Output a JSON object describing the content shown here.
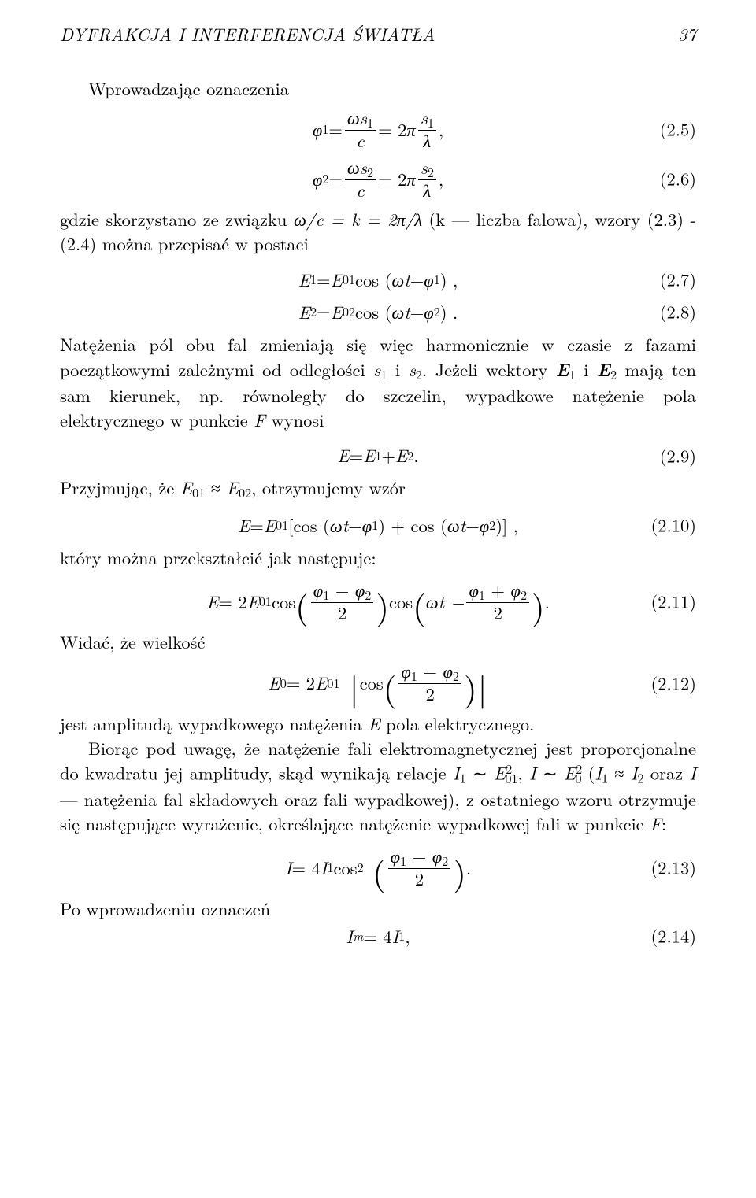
{
  "header": {
    "title": "DYFRAKCJA I INTERFERENCJA ŚWIATŁA",
    "page_number": "37"
  },
  "p_intro": "Wprowadzając oznaczenia",
  "eq25": {
    "lhs": "φ",
    "lhs_sub": "1",
    "eq": " = ",
    "frac1_num_a": "ωs",
    "frac1_num_sub": "1",
    "frac1_den": "c",
    "mid": " = 2",
    "pi": "π",
    "frac2_num_a": "s",
    "frac2_num_sub": "1",
    "frac2_den": "λ",
    "tail": ",",
    "num": "(2.5)"
  },
  "eq26": {
    "lhs": "φ",
    "lhs_sub": "2",
    "eq": " = ",
    "frac1_num_a": "ωs",
    "frac1_num_sub": "2",
    "frac1_den": "c",
    "mid": " = 2",
    "pi": "π",
    "frac2_num_a": "s",
    "frac2_num_sub": "2",
    "frac2_den": "λ",
    "tail": ",",
    "num": "(2.6)"
  },
  "p_after26_a": "gdzie skorzystano ze związku ",
  "p_after26_rel": "ω/c = k = 2π/λ",
  "p_after26_b": " (k — liczba falowa), wzory (2.3) - (2.4) można przepisać w postaci",
  "eq27": {
    "E": "E",
    "s1": "1",
    "eq": " = ",
    "E0": "E",
    "s01": "01",
    "cos": " cos (",
    "omega_t": "ωt",
    "minus": " − ",
    "phi": "φ",
    "phisub": "1",
    "close": ") ,",
    "num": "(2.7)"
  },
  "eq28": {
    "E": "E",
    "s1": "2",
    "eq": " = ",
    "E0": "E",
    "s01": "02",
    "cos": " cos (",
    "omega_t": "ωt",
    "minus": " − ",
    "phi": "φ",
    "phisub": "2",
    "close": ") .",
    "num": "(2.8)"
  },
  "p_after28_a": "Natężenia pól obu fal zmieniają się więc harmonicznie w czasie z fazami początkowymi zależnymi od odległości ",
  "p_after28_s1": "s",
  "p_after28_s1sub": "1",
  "p_after28_b": " i ",
  "p_after28_s2": "s",
  "p_after28_s2sub": "2",
  "p_after28_c": ". Jeżeli wektory ",
  "p_after28_E1": "E",
  "p_after28_E1sub": "1",
  "p_after28_d": " i ",
  "p_after28_E2": "E",
  "p_after28_E2sub": "2",
  "p_after28_e": " mają ten sam kierunek, np. równoległy do szczelin, wypadkowe natężenie pola elektrycznego w punkcie ",
  "p_after28_F": "F",
  "p_after28_f": " wynosi",
  "eq29": {
    "E": "E",
    "eq": " = ",
    "E1": "E",
    "s1": "1",
    "plus": " + ",
    "E2": "E",
    "s2": "2",
    "dot": ".",
    "num": "(2.9)"
  },
  "p_after29_a": "Przyjmując, że ",
  "p_after29_E01": "E",
  "p_after29_E01sub": "01",
  "p_after29_approx": " ≈ ",
  "p_after29_E02": "E",
  "p_after29_E02sub": "02",
  "p_after29_b": ", otrzymujemy wzór",
  "eq210": {
    "E": "E",
    "eq": " = ",
    "E01": "E",
    "s01": "01",
    "open": " [cos (",
    "wt1": "ωt",
    "m1": " − ",
    "p1": "φ",
    "p1s": "1",
    "mid": ") + cos (",
    "wt2": "ωt",
    "m2": " − ",
    "p2": "φ",
    "p2s": "2",
    "close": ")] ,",
    "num": "(2.10)"
  },
  "p_after210": "który można przekształcić jak następuje:",
  "eq211": {
    "E": "E",
    "eq": " = 2",
    "E01": "E",
    "s01": "01",
    "cos1": " cos ",
    "f1num_a": "φ",
    "f1num_as": "1",
    "f1num_m": " − ",
    "f1num_b": "φ",
    "f1num_bs": "2",
    "f1den": "2",
    "cos2": " cos ",
    "f2pre": "ωt − ",
    "f2num_a": "φ",
    "f2num_as": "1",
    "f2num_m": " + ",
    "f2num_b": "φ",
    "f2num_bs": "2",
    "f2den": "2",
    "dot": ".",
    "num": "(2.11)"
  },
  "p_widac": "Widać, że wielkość",
  "eq212": {
    "E0": "E",
    "s0": "0",
    "eq": " = 2",
    "E01": "E",
    "s01": "01",
    "cos": "cos ",
    "fnum_a": "φ",
    "fnum_as": "1",
    "fnum_m": " − ",
    "fnum_b": "φ",
    "fnum_bs": "2",
    "fden": "2",
    "num": "(2.12)"
  },
  "p_after212_a": "jest amplitudą wypadkowego natężenia ",
  "p_after212_E": "E",
  "p_after212_b": " pola elektrycznego.",
  "p_biorac_a": "Biorąc pod uwagę, że natężenie fali elektromagnetycznej jest proporcjonalne do kwadratu jej amplitudy, skąd wynikają relacje ",
  "p_biorac_I1": "I",
  "p_biorac_I1sub": "1",
  "p_biorac_sim1": " ∼ ",
  "p_biorac_E01": "E",
  "p_biorac_E01sub": "01",
  "p_biorac_E01sup": "2",
  "p_biorac_comma": ", ",
  "p_biorac_I": "I",
  "p_biorac_sim2": " ∼ ",
  "p_biorac_E0": "E",
  "p_biorac_E0sub": "0",
  "p_biorac_E0sup": "2",
  "p_biorac_b": " (",
  "p_biorac_I1b": "I",
  "p_biorac_I1bsub": "1",
  "p_biorac_approx": " ≈ ",
  "p_biorac_I2": "I",
  "p_biorac_I2sub": "2",
  "p_biorac_c": " oraz ",
  "p_biorac_Ic": "I",
  "p_biorac_d": " — natężenia fal składowych oraz fali wypadkowej), z ostatniego wzoru otrzymuje się następujące wyrażenie, określające natężenie wypadkowej fali w punkcie ",
  "p_biorac_F": "F",
  "p_biorac_e": ":",
  "eq213": {
    "I": "I",
    "eq": " = 4",
    "I1": "I",
    "s1": "1",
    "cos": " cos",
    "sq": "2",
    "fnum_a": "φ",
    "fnum_as": "1",
    "fnum_m": " − ",
    "fnum_b": "φ",
    "fnum_bs": "2",
    "fden": "2",
    "dot": ".",
    "num": "(2.13)"
  },
  "p_po": "Po wprowadzeniu oznaczeń",
  "eq214": {
    "Im": "I",
    "msub": "m",
    "eq": " = 4",
    "I1": "I",
    "s1": "1",
    "comma": ",",
    "num": "(2.14)"
  }
}
